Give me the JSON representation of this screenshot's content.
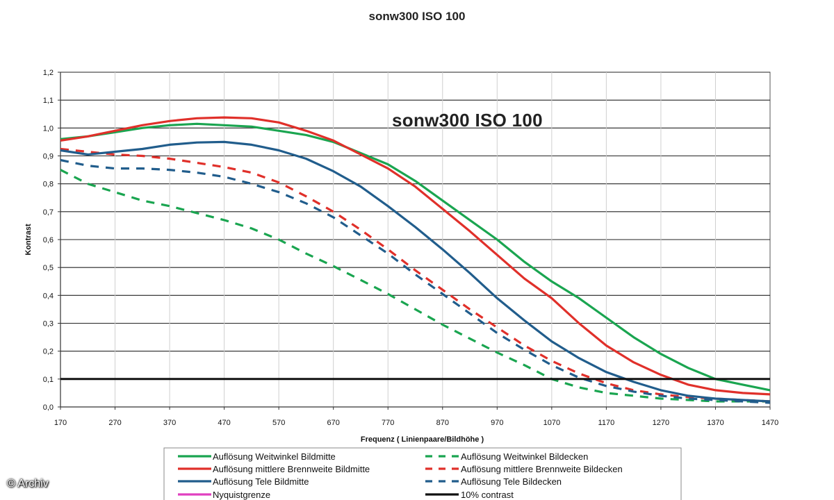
{
  "colors": {
    "green": "#1aa550",
    "red": "#e0302a",
    "blue": "#215d8c",
    "magenta": "#e040c0",
    "black": "#111111",
    "grid": "#222222"
  },
  "copyright": "© Archiv",
  "chart_data": {
    "type": "line",
    "title": "sonw300 ISO 100",
    "inner_title": "sonw300 ISO 100",
    "xlabel": "Frequenz ( Linienpaare/Bildhöhe )",
    "ylabel": "Kontrast",
    "xlim": [
      170,
      1470
    ],
    "ylim": [
      0,
      1.2
    ],
    "x_ticks": [
      170,
      270,
      370,
      470,
      570,
      670,
      770,
      870,
      970,
      1070,
      1170,
      1270,
      1370,
      1470
    ],
    "y_ticks": [
      0,
      0.1,
      0.2,
      0.3,
      0.4,
      0.5,
      0.6,
      0.7,
      0.8,
      0.9,
      1.0,
      1.1,
      1.2
    ],
    "y_tick_labels": [
      "0,0",
      "0,1",
      "0,2",
      "0,3",
      "0,4",
      "0,5",
      "0,6",
      "0,7",
      "0,8",
      "0,9",
      "1,0",
      "1,1",
      "1,2"
    ],
    "grid": "horizontal",
    "legend_position": "bottom",
    "series": [
      {
        "name": "Auflösung Weitwinkel Bildmitte",
        "color": "#1aa550",
        "dash": "solid",
        "x": [
          170,
          220,
          270,
          320,
          370,
          420,
          470,
          520,
          570,
          620,
          670,
          720,
          770,
          820,
          870,
          920,
          970,
          1020,
          1070,
          1120,
          1170,
          1220,
          1270,
          1320,
          1370,
          1420,
          1470
        ],
        "y": [
          0.96,
          0.97,
          0.985,
          1.0,
          1.01,
          1.015,
          1.01,
          1.005,
          0.99,
          0.975,
          0.95,
          0.91,
          0.87,
          0.81,
          0.74,
          0.67,
          0.6,
          0.52,
          0.45,
          0.39,
          0.32,
          0.25,
          0.19,
          0.14,
          0.1,
          0.08,
          0.06
        ]
      },
      {
        "name": "Auflösung Weitwinkel Bildecken",
        "color": "#1aa550",
        "dash": "dashed",
        "x": [
          170,
          220,
          270,
          320,
          370,
          420,
          470,
          520,
          570,
          620,
          670,
          720,
          770,
          820,
          870,
          920,
          970,
          1020,
          1070,
          1120,
          1170,
          1220,
          1270,
          1320,
          1370,
          1420,
          1470
        ],
        "y": [
          0.85,
          0.8,
          0.77,
          0.74,
          0.72,
          0.695,
          0.67,
          0.64,
          0.6,
          0.55,
          0.505,
          0.455,
          0.405,
          0.35,
          0.295,
          0.245,
          0.195,
          0.15,
          0.1,
          0.07,
          0.05,
          0.04,
          0.03,
          0.025,
          0.02,
          0.02,
          0.02
        ]
      },
      {
        "name": "Auflösung mittlere Brennweite Bildmitte",
        "color": "#e0302a",
        "dash": "solid",
        "x": [
          170,
          220,
          270,
          320,
          370,
          420,
          470,
          520,
          570,
          620,
          670,
          720,
          770,
          820,
          870,
          920,
          970,
          1020,
          1070,
          1120,
          1170,
          1220,
          1270,
          1320,
          1370,
          1420,
          1470
        ],
        "y": [
          0.955,
          0.97,
          0.99,
          1.01,
          1.025,
          1.035,
          1.038,
          1.035,
          1.02,
          0.99,
          0.955,
          0.905,
          0.855,
          0.79,
          0.71,
          0.63,
          0.545,
          0.46,
          0.39,
          0.3,
          0.22,
          0.16,
          0.115,
          0.08,
          0.06,
          0.05,
          0.045
        ]
      },
      {
        "name": "Auflösung mittlere Brennweite Bildecken",
        "color": "#e0302a",
        "dash": "dashed",
        "x": [
          170,
          220,
          270,
          320,
          370,
          420,
          470,
          520,
          570,
          620,
          670,
          720,
          770,
          820,
          870,
          920,
          970,
          1020,
          1070,
          1120,
          1170,
          1220,
          1270,
          1320,
          1370,
          1420,
          1470
        ],
        "y": [
          0.925,
          0.915,
          0.905,
          0.9,
          0.89,
          0.875,
          0.86,
          0.84,
          0.805,
          0.755,
          0.7,
          0.635,
          0.565,
          0.49,
          0.42,
          0.35,
          0.285,
          0.22,
          0.165,
          0.12,
          0.085,
          0.06,
          0.045,
          0.035,
          0.03,
          0.025,
          0.02
        ]
      },
      {
        "name": "Auflösung Tele Bildmitte",
        "color": "#215d8c",
        "dash": "solid",
        "x": [
          170,
          220,
          270,
          320,
          370,
          420,
          470,
          520,
          570,
          620,
          670,
          720,
          770,
          820,
          870,
          920,
          970,
          1020,
          1070,
          1120,
          1170,
          1220,
          1270,
          1320,
          1370,
          1420,
          1470
        ],
        "y": [
          0.92,
          0.905,
          0.915,
          0.925,
          0.94,
          0.948,
          0.95,
          0.94,
          0.92,
          0.89,
          0.845,
          0.79,
          0.72,
          0.645,
          0.565,
          0.48,
          0.39,
          0.31,
          0.235,
          0.175,
          0.125,
          0.09,
          0.06,
          0.04,
          0.03,
          0.025,
          0.02
        ]
      },
      {
        "name": "Auflösung Tele Bildecken",
        "color": "#215d8c",
        "dash": "dashed",
        "x": [
          170,
          220,
          270,
          320,
          370,
          420,
          470,
          520,
          570,
          620,
          670,
          720,
          770,
          820,
          870,
          920,
          970,
          1020,
          1070,
          1120,
          1170,
          1220,
          1270,
          1320,
          1370,
          1420,
          1470
        ],
        "y": [
          0.885,
          0.865,
          0.855,
          0.855,
          0.85,
          0.84,
          0.825,
          0.8,
          0.77,
          0.73,
          0.68,
          0.615,
          0.55,
          0.475,
          0.405,
          0.335,
          0.265,
          0.205,
          0.15,
          0.105,
          0.075,
          0.055,
          0.04,
          0.03,
          0.025,
          0.02,
          0.015
        ]
      },
      {
        "name": "Nyquistgrenze",
        "color": "#e040c0",
        "dash": "solid",
        "x": [],
        "y": []
      },
      {
        "name": "10% contrast",
        "color": "#111111",
        "dash": "solid",
        "x": [
          170,
          1470
        ],
        "y": [
          0.1,
          0.1
        ]
      }
    ],
    "legend": {
      "left": [
        {
          "label": "Auflösung Weitwinkel Bildmitte",
          "color": "#1aa550",
          "dash": "solid"
        },
        {
          "label": "Auflösung mittlere Brennweite Bildmitte",
          "color": "#e0302a",
          "dash": "solid"
        },
        {
          "label": "Auflösung Tele Bildmitte",
          "color": "#215d8c",
          "dash": "solid"
        },
        {
          "label": "Nyquistgrenze",
          "color": "#e040c0",
          "dash": "solid"
        }
      ],
      "right": [
        {
          "label": "Auflösung Weitwinkel Bildecken",
          "color": "#1aa550",
          "dash": "dashed"
        },
        {
          "label": "Auflösung mittlere Brennweite Bildecken",
          "color": "#e0302a",
          "dash": "dashed"
        },
        {
          "label": "Auflösung Tele Bildecken",
          "color": "#215d8c",
          "dash": "dashed"
        },
        {
          "label": "10% contrast",
          "color": "#111111",
          "dash": "solid"
        }
      ]
    }
  }
}
